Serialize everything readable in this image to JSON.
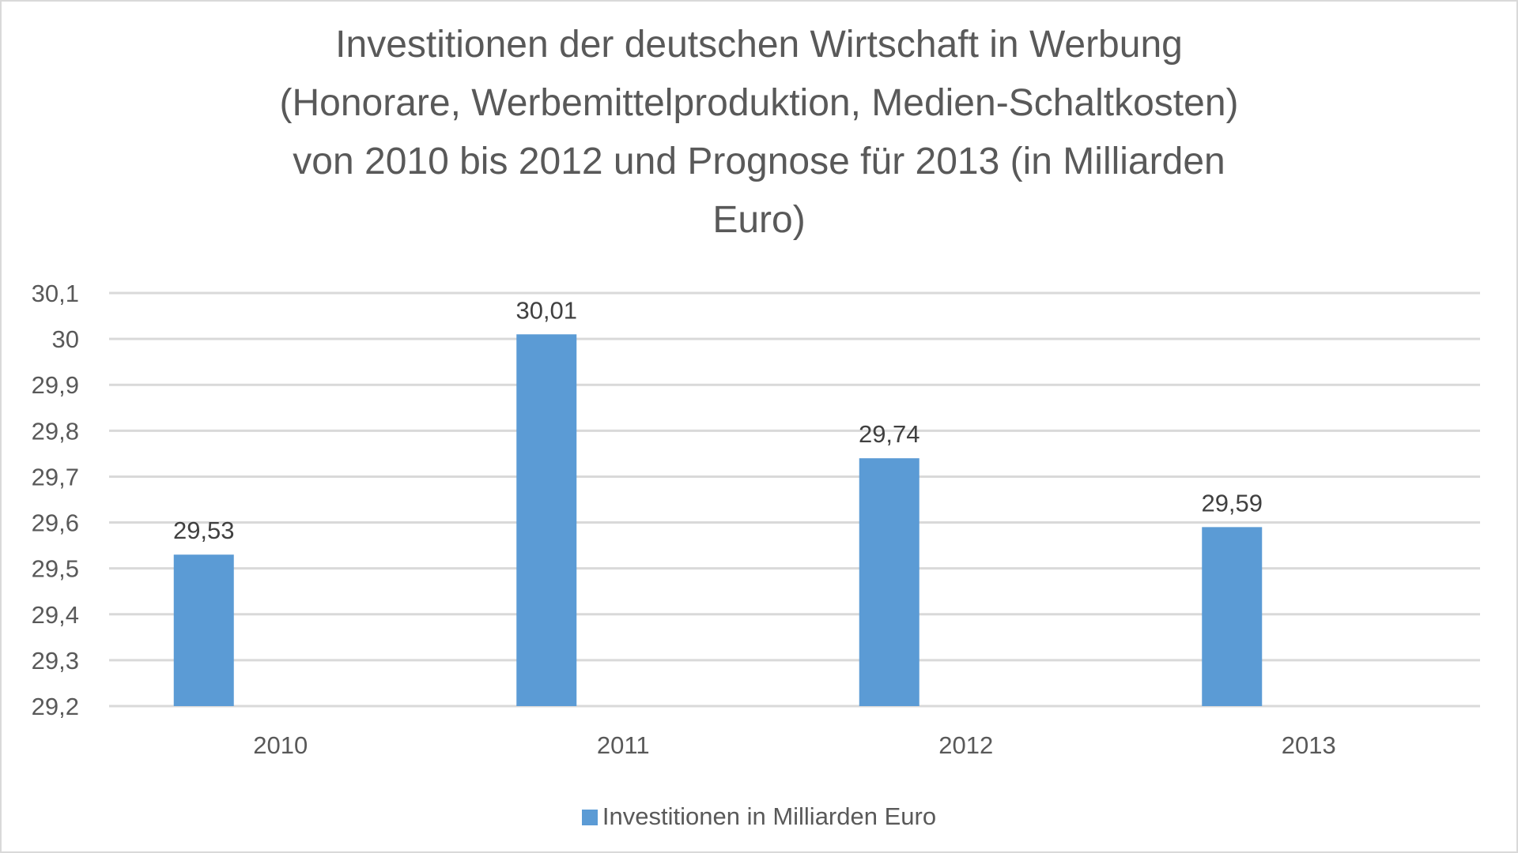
{
  "chart_data": {
    "type": "bar",
    "title": "Investitionen der deutschen Wirtschaft in Werbung (Honorare, Werbemittelproduktion, Medien-Schaltkosten) von 2010 bis 2012 und Prognose für 2013 (in Milliarden Euro)",
    "title_lines": [
      "Investitionen der deutschen Wirtschaft in Werbung",
      "(Honorare, Werbemittelproduktion, Medien-Schaltkosten)",
      "von 2010 bis 2012 und Prognose für 2013 (in Milliarden",
      "Euro)"
    ],
    "categories": [
      "2010",
      "2011",
      "2012",
      "2013"
    ],
    "series": [
      {
        "name": "Investitionen in Milliarden Euro",
        "values": [
          29.53,
          30.01,
          29.74,
          29.59
        ],
        "labels": [
          "29,53",
          "30,01",
          "29,74",
          "29,59"
        ],
        "color": "#5b9bd5"
      }
    ],
    "ylim": [
      29.2,
      30.1
    ],
    "yticks": [
      "29,2",
      "29,3",
      "29,4",
      "29,5",
      "29,6",
      "29,7",
      "29,8",
      "29,9",
      "30",
      "30,1"
    ],
    "xlabel": "",
    "ylabel": "",
    "grid": true,
    "legend": "bottom"
  }
}
